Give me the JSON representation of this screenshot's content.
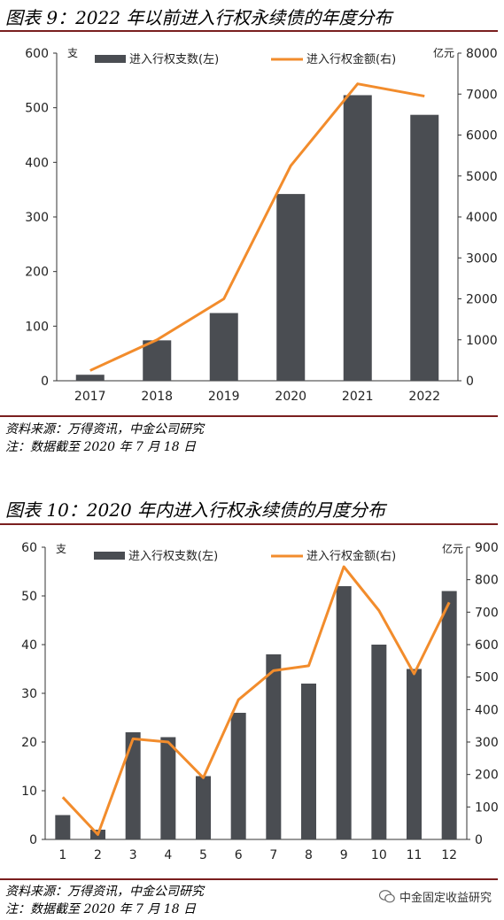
{
  "figures": [
    {
      "title": "图表 9：2022 年以前进入行权永续债的年度分布",
      "source": "资料来源：万得资讯，中金公司研究",
      "note": "注：数据截至 2020 年 7 月 18 日"
    },
    {
      "title": "图表 10：2020 年内进入行权永续债的月度分布",
      "source": "资料来源：万得资讯，中金公司研究",
      "note": "注：数据截至 2020 年 7 月 18 日"
    }
  ],
  "watermark": {
    "text": "中金固定收益研究",
    "icon": "wechat-icon"
  },
  "colors": {
    "bar": "#4a4d52",
    "line": "#f28c2c",
    "rule": "#7a1f1f"
  },
  "chart_data": [
    {
      "type": "bar",
      "categories": [
        "2017",
        "2018",
        "2019",
        "2020",
        "2021",
        "2022"
      ],
      "series": [
        {
          "name": "进入行权支数(左)",
          "type": "bar",
          "axis": "left",
          "values": [
            11,
            74,
            124,
            342,
            523,
            487
          ]
        },
        {
          "name": "进入行权金额(右)",
          "type": "line",
          "axis": "right",
          "values": [
            250,
            1000,
            2000,
            5250,
            7250,
            6950
          ]
        }
      ],
      "ylabel_left": "支",
      "ylabel_right": "亿元",
      "ylim_left": [
        0,
        600
      ],
      "yticks_left": [
        0,
        100,
        200,
        300,
        400,
        500,
        600
      ],
      "ylim_right": [
        0,
        8000
      ],
      "yticks_right": [
        0,
        1000,
        2000,
        3000,
        4000,
        5000,
        6000,
        7000,
        8000
      ],
      "legend": "top",
      "grid": false
    },
    {
      "type": "bar",
      "categories": [
        "1",
        "2",
        "3",
        "4",
        "5",
        "6",
        "7",
        "8",
        "9",
        "10",
        "11",
        "12"
      ],
      "series": [
        {
          "name": "进入行权支数(左)",
          "type": "bar",
          "axis": "left",
          "values": [
            5,
            2,
            22,
            21,
            13,
            26,
            38,
            32,
            52,
            40,
            35,
            51
          ]
        },
        {
          "name": "进入行权金额(右)",
          "type": "line",
          "axis": "right",
          "values": [
            130,
            15,
            310,
            300,
            190,
            430,
            520,
            535,
            840,
            705,
            510,
            730
          ]
        }
      ],
      "ylabel_left": "支",
      "ylabel_right": "亿元",
      "ylim_left": [
        0,
        60
      ],
      "yticks_left": [
        0,
        10,
        20,
        30,
        40,
        50,
        60
      ],
      "ylim_right": [
        0,
        900
      ],
      "yticks_right": [
        0,
        100,
        200,
        300,
        400,
        500,
        600,
        700,
        800,
        900
      ],
      "legend": "top",
      "grid": false
    }
  ]
}
